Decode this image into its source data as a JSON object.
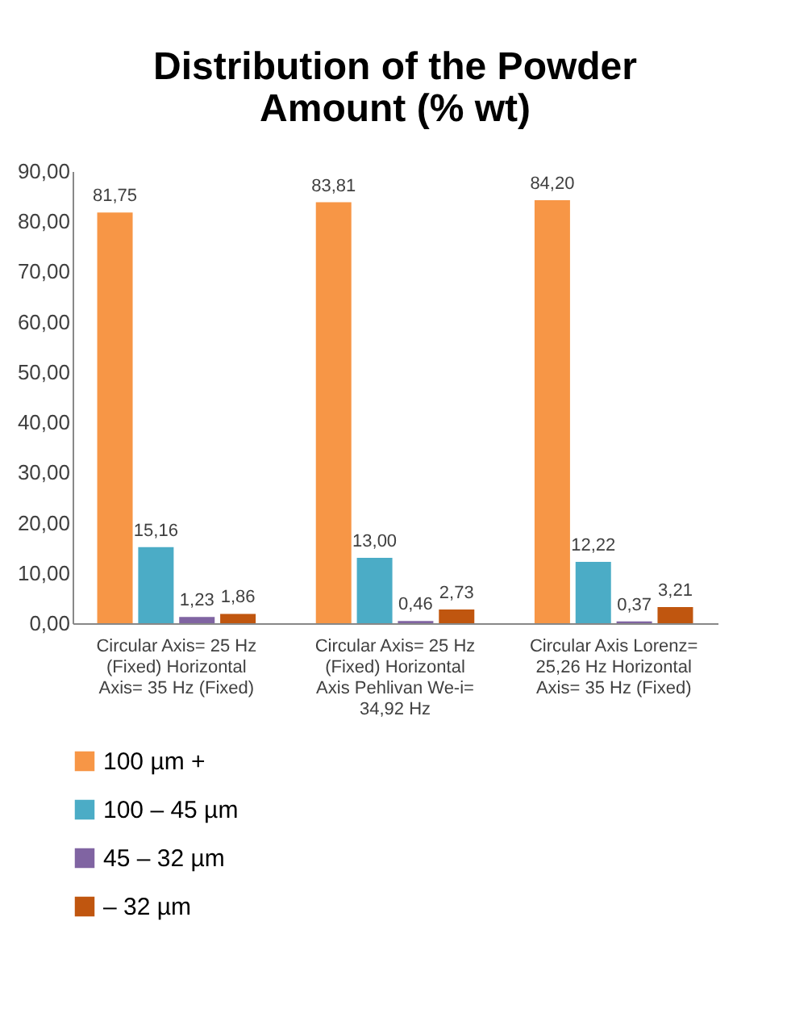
{
  "chart_data": {
    "type": "bar",
    "title": "Distribution of the Powder Amount (% wt)",
    "categories": [
      "Circular Axis= 25 Hz (Fixed) Horizontal Axis= 35 Hz (Fixed)",
      "Circular Axis= 25 Hz (Fixed) Horizontal Axis Pehlivan We-i= 34,92 Hz",
      "Circular Axis Lorenz= 25,26 Hz Horizontal Axis= 35 Hz (Fixed)"
    ],
    "series": [
      {
        "name": "100 µm +",
        "color": "#f79646",
        "values": [
          81.75,
          83.81,
          84.2
        ],
        "value_labels": [
          "81,75",
          "83,81",
          "84,20"
        ]
      },
      {
        "name": "100 – 45 µm",
        "color": "#4bacc6",
        "values": [
          15.16,
          13.0,
          12.22
        ],
        "value_labels": [
          "15,16",
          "13,00",
          "12,22"
        ]
      },
      {
        "name": "45 – 32 µm",
        "color": "#8064a2",
        "values": [
          1.23,
          0.46,
          0.37
        ],
        "value_labels": [
          "1,23",
          "0,46",
          "0,37"
        ]
      },
      {
        "name": "– 32 µm",
        "color": "#c0560f",
        "values": [
          1.86,
          2.73,
          3.21
        ],
        "value_labels": [
          "1,86",
          "2,73",
          "3,21"
        ]
      }
    ],
    "ylim": [
      0,
      90
    ],
    "yticks": [
      {
        "value": 0,
        "label": "0,00"
      },
      {
        "value": 10,
        "label": "10,00"
      },
      {
        "value": 20,
        "label": "20,00"
      },
      {
        "value": 30,
        "label": "30,00"
      },
      {
        "value": 40,
        "label": "40,00"
      },
      {
        "value": 50,
        "label": "50,00"
      },
      {
        "value": 60,
        "label": "60,00"
      },
      {
        "value": 70,
        "label": "70,00"
      },
      {
        "value": 80,
        "label": "80,00"
      },
      {
        "value": 90,
        "label": "90,00"
      }
    ],
    "grid": false,
    "legend": "bottom"
  }
}
